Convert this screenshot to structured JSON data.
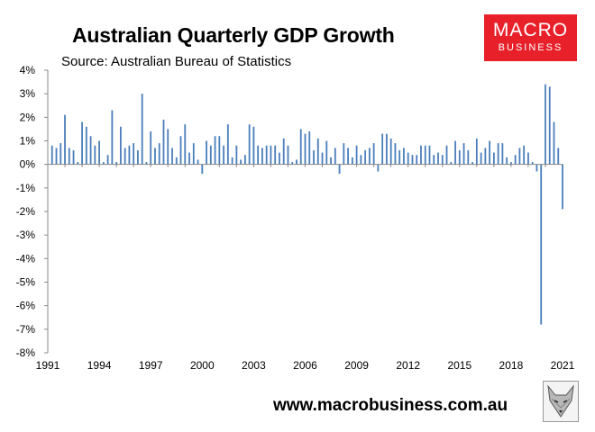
{
  "header": {
    "title": "Australian Quarterly GDP Growth",
    "source": "Source: Australian Bureau of Statistics"
  },
  "logo": {
    "line1": "MACRO",
    "line2": "BUSINESS",
    "color": "#e8202a"
  },
  "footer": {
    "url": "www.macrobusiness.com.au"
  },
  "chart_data": {
    "type": "bar",
    "title": "Australian Quarterly GDP Growth",
    "xlabel": "",
    "ylabel": "",
    "ylim": [
      -8,
      4
    ],
    "y_ticks": [
      "4%",
      "3%",
      "2%",
      "1%",
      "0%",
      "-1%",
      "-2%",
      "-3%",
      "-4%",
      "-5%",
      "-6%",
      "-7%",
      "-8%"
    ],
    "x_ticks": [
      "1991",
      "1994",
      "1997",
      "2000",
      "2003",
      "2006",
      "2009",
      "2012",
      "2015",
      "2018",
      "2021"
    ],
    "x_start": 1991,
    "x_end": 2021,
    "bar_color": "#4a7ebb",
    "series": [
      {
        "name": "Quarterly GDP growth (%)",
        "start": "1991 Q2",
        "values": [
          0.8,
          0.7,
          0.9,
          2.1,
          0.7,
          0.6,
          0.1,
          1.8,
          1.6,
          1.2,
          0.8,
          1.0,
          0.1,
          0.4,
          2.3,
          0.1,
          1.6,
          0.7,
          0.8,
          0.9,
          0.6,
          3.0,
          0.1,
          1.4,
          0.7,
          0.9,
          1.9,
          1.5,
          0.7,
          0.3,
          1.2,
          1.7,
          0.5,
          0.9,
          0.2,
          -0.4,
          1.0,
          0.8,
          1.2,
          1.2,
          0.8,
          1.7,
          0.3,
          0.8,
          0.2,
          0.4,
          1.7,
          1.6,
          0.8,
          0.7,
          0.8,
          0.8,
          0.8,
          0.5,
          1.1,
          0.8,
          0.1,
          0.2,
          1.5,
          1.3,
          1.4,
          0.6,
          1.1,
          0.5,
          1.0,
          0.3,
          0.7,
          -0.4,
          0.9,
          0.7,
          0.3,
          0.8,
          0.4,
          0.6,
          0.7,
          0.9,
          -0.3,
          1.3,
          1.3,
          1.1,
          0.9,
          0.6,
          0.7,
          0.5,
          0.4,
          0.4,
          0.8,
          0.8,
          0.8,
          0.4,
          0.5,
          0.4,
          0.8,
          0.1,
          1.0,
          0.6,
          0.9,
          0.6,
          0.1,
          1.1,
          0.5,
          0.7,
          1.0,
          0.5,
          0.9,
          0.9,
          0.3,
          0.1,
          0.4,
          0.7,
          0.8,
          0.5,
          0.1,
          -0.3,
          -6.8,
          3.4,
          3.3,
          1.8,
          0.7,
          -1.9
        ]
      }
    ]
  }
}
